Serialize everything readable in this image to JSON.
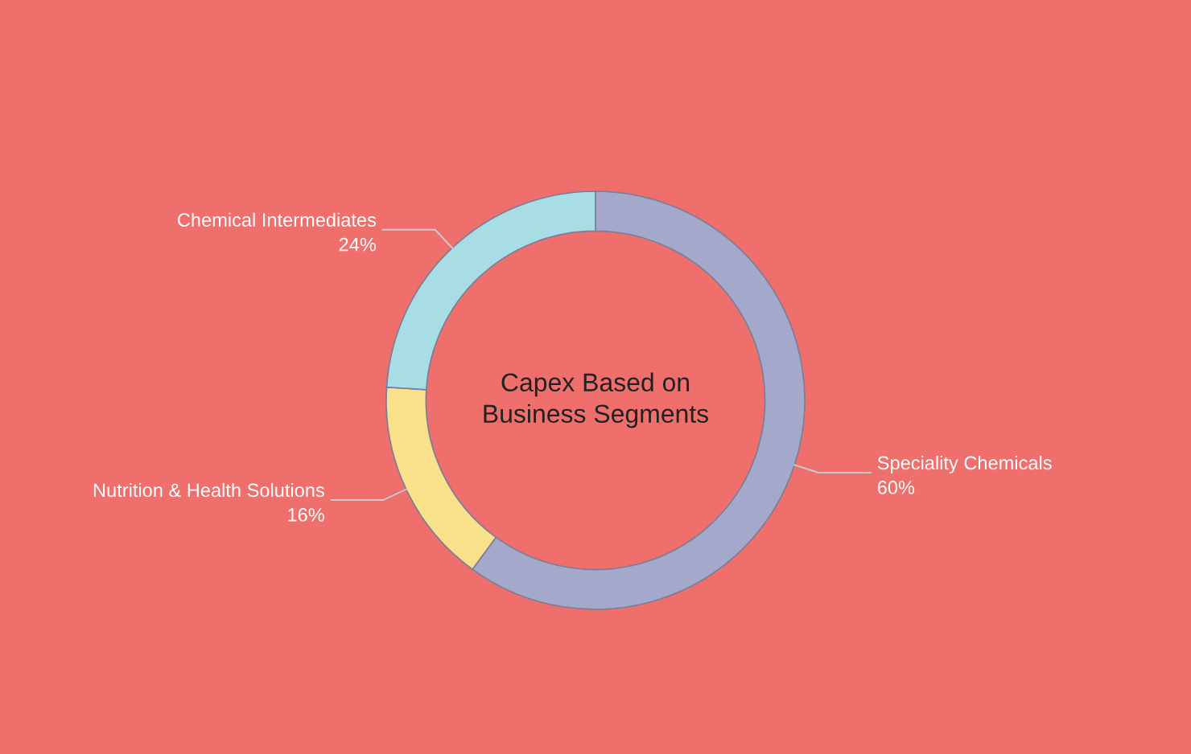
{
  "chart_data": {
    "type": "donut",
    "title": "Capex Based on\nBusiness Segments",
    "categories": [
      "Speciality Chemicals",
      "Nutrition & Health Solutions",
      "Chemical Intermediates"
    ],
    "values": [
      60,
      16,
      24
    ],
    "value_labels": [
      "60%",
      "16%",
      "24%"
    ],
    "colors": [
      "#a4a9cc",
      "#f9e08a",
      "#a9dde6"
    ],
    "legend": false
  }
}
